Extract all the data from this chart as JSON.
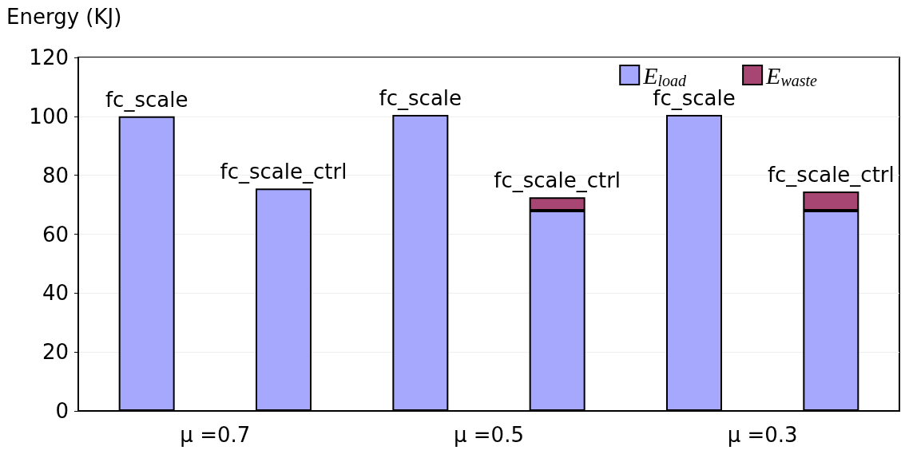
{
  "chart_data": {
    "type": "bar",
    "ylabel": "Energy (KJ)",
    "categories": [
      "fc_scale",
      "fc_scale_ctrl",
      "fc_scale",
      "fc_scale_ctrl",
      "fc_scale",
      "fc_scale_ctrl"
    ],
    "series": [
      {
        "name": "E$_{load}$",
        "color": "#a5a8fc",
        "values": [
          100,
          75.5,
          100.5,
          68,
          100.5,
          68
        ]
      },
      {
        "name": "E$_{waste}$",
        "color": "#a84673",
        "values": [
          null,
          null,
          null,
          4.5,
          null,
          6.5
        ]
      }
    ],
    "stacked": true,
    "ylim": [
      0,
      120
    ],
    "yticks": [
      0,
      20,
      40,
      60,
      80,
      100,
      120
    ],
    "grid": "y",
    "legend": "top right",
    "annotations": [
      "μ =0.7",
      "μ =0.5",
      "μ =0.3"
    ]
  }
}
